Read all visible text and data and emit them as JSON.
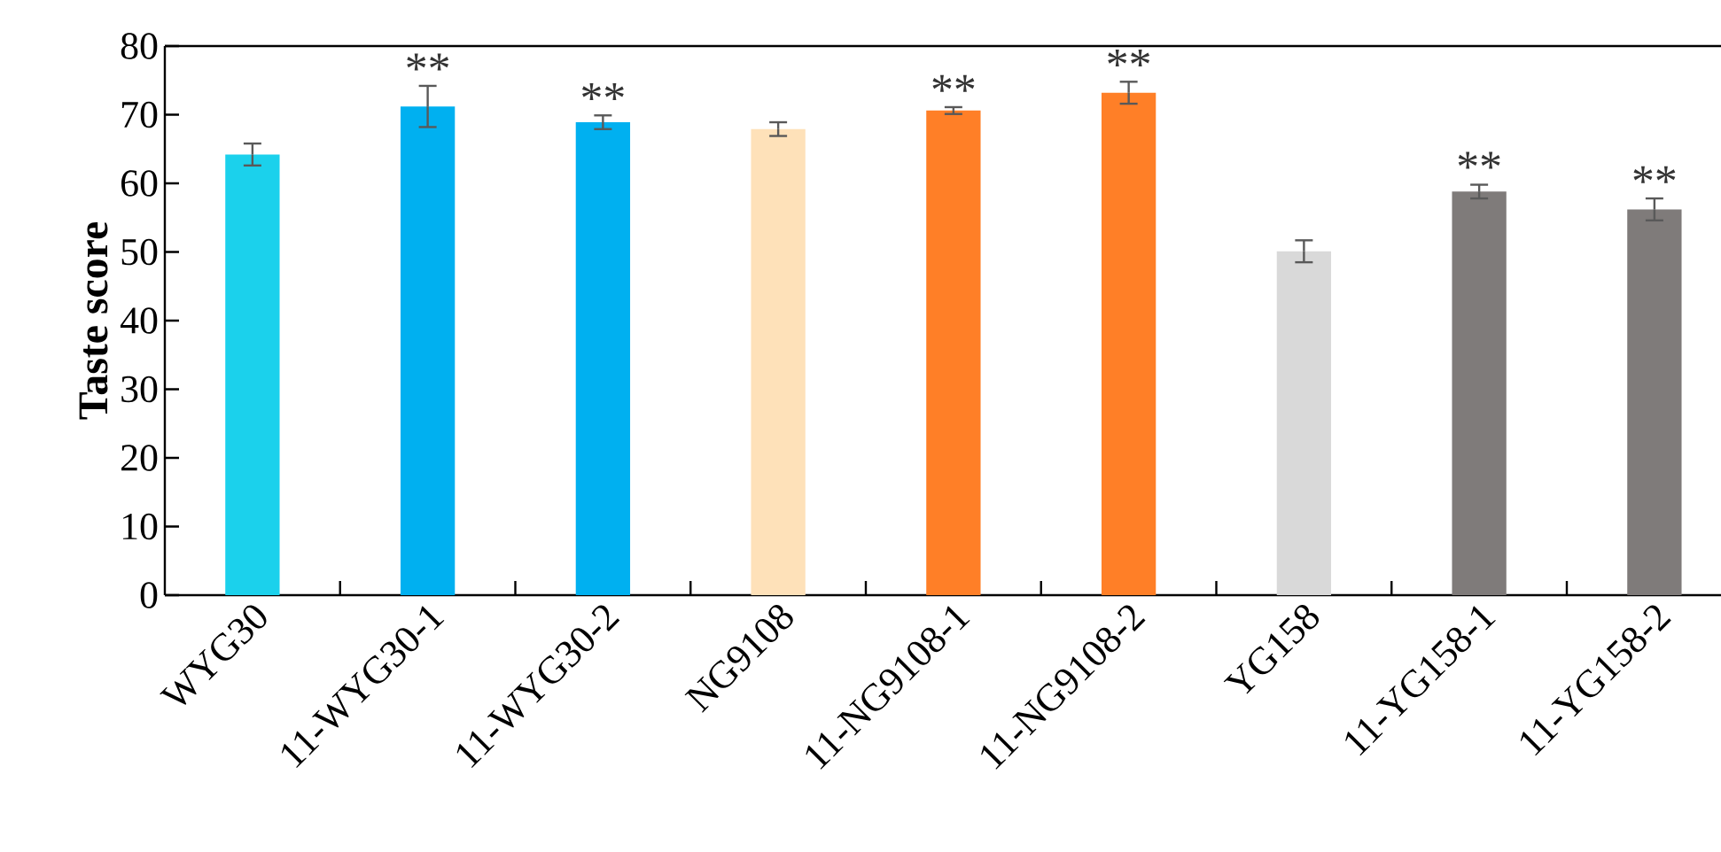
{
  "chart_data": {
    "type": "bar",
    "ylabel": "Taste score",
    "categories": [
      "WYG30",
      "11-WYG30-1",
      "11-WYG30-2",
      "NG9108",
      "11-NG9108-1",
      "11-NG9108-2",
      "YG158",
      "11-YG158-1",
      "11-YG158-2"
    ],
    "values": [
      64.2,
      71.2,
      68.9,
      67.9,
      70.6,
      73.2,
      50.1,
      58.8,
      56.2
    ],
    "errors": [
      1.6,
      3.0,
      1.0,
      1.0,
      0.5,
      1.6,
      1.6,
      1.0,
      1.6
    ],
    "colors": [
      "#1bd1ec",
      "#00b0f0",
      "#00b0f0",
      "#fee1b9",
      "#ff7f27",
      "#ff7f27",
      "#d9d9d9",
      "#7f7b7a",
      "#7f7b7a"
    ],
    "ylim": [
      0,
      80
    ],
    "yticks": [
      0,
      10,
      20,
      30,
      40,
      50,
      60,
      70,
      80
    ],
    "grid": false,
    "annotations": [
      {
        "text": "**",
        "x": "11-WYG30-1",
        "y": 74.2
      },
      {
        "text": "**",
        "x": "11-WYG30-2",
        "y": 69.9
      },
      {
        "text": "**",
        "x": "11-NG9108-1",
        "y": 71.1
      },
      {
        "text": "**",
        "x": "11-NG9108-2",
        "y": 74.8
      },
      {
        "text": "**",
        "x": "11-YG158-1",
        "y": 59.9
      },
      {
        "text": "**",
        "x": "11-YG158-2",
        "y": 57.8
      }
    ]
  }
}
